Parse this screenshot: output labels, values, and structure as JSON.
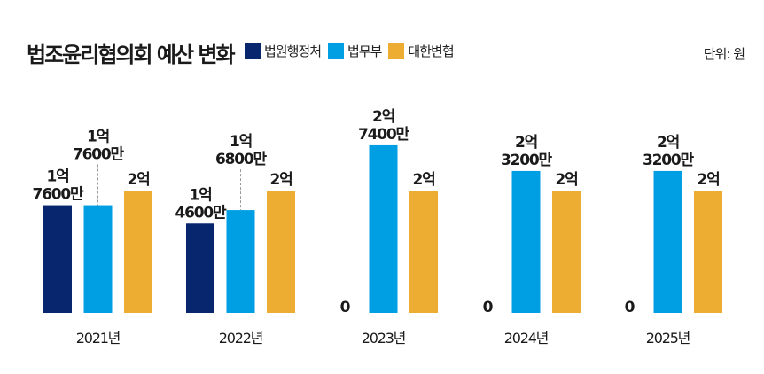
{
  "colors": {
    "court_admin": "#08266e",
    "justice_ministry": "#009fe3",
    "bar_association": "#ecad32",
    "connector": "#999999"
  },
  "chart_data": {
    "type": "bar",
    "title": "법조윤리협의회 예산 변화",
    "unit_label": "단위: 원",
    "xlabel": "",
    "ylabel": "",
    "ylim": [
      0,
      300000000
    ],
    "grid": false,
    "legend_position": "top",
    "categories": [
      "2021년",
      "2022년",
      "2023년",
      "2024년",
      "2025년"
    ],
    "series": [
      {
        "name": "법원행정처",
        "color_key": "court_admin",
        "values": [
          176000000,
          146000000,
          0,
          0,
          0
        ],
        "labels": [
          [
            "1억",
            "7600만"
          ],
          [
            "1억",
            "4600만"
          ],
          [
            "0"
          ],
          [
            "0"
          ],
          [
            "0"
          ]
        ]
      },
      {
        "name": "법무부",
        "color_key": "justice_ministry",
        "values": [
          176000000,
          168000000,
          274000000,
          232000000,
          232000000
        ],
        "labels": [
          [
            "1억",
            "7600만"
          ],
          [
            "1억",
            "6800만"
          ],
          [
            "2억",
            "7400만"
          ],
          [
            "2억",
            "3200만"
          ],
          [
            "2억",
            "3200만"
          ]
        ]
      },
      {
        "name": "대한변협",
        "color_key": "bar_association",
        "values": [
          200000000,
          200000000,
          200000000,
          200000000,
          200000000
        ],
        "labels": [
          [
            "2억"
          ],
          [
            "2억"
          ],
          [
            "2억"
          ],
          [
            "2억"
          ],
          [
            "2억"
          ]
        ]
      }
    ]
  }
}
